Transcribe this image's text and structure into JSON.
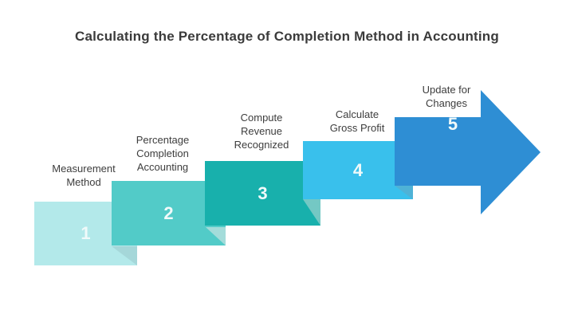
{
  "title": "Calculating the Percentage of Completion Method in Accounting",
  "steps": [
    {
      "number": "1",
      "label": "Measurement Method",
      "lines": [
        "Measurement",
        "Method"
      ]
    },
    {
      "number": "2",
      "label": "Percentage Completion Accounting",
      "lines": [
        "Percentage",
        "Completion",
        "Accounting"
      ]
    },
    {
      "number": "3",
      "label": "Compute Revenue Recognized",
      "lines": [
        "Compute",
        "Revenue",
        "Recognized"
      ]
    },
    {
      "number": "4",
      "label": "Calculate Gross Profit",
      "lines": [
        "Calculate",
        "Gross Profit"
      ]
    },
    {
      "number": "5",
      "label": "Update for Changes",
      "lines": [
        "Update for",
        "Changes"
      ]
    }
  ],
  "colors": {
    "step1": "#b3e9ea",
    "step1-fold": "#a5d7d9",
    "step2": "#52cbc8",
    "step2-fold": "#a3dcda",
    "step3": "#18b0ac",
    "step3-fold": "#74c8c4",
    "step4": "#39c0ec",
    "step4-fold": "#4fb2d6",
    "step5": "#2e8ed4",
    "title-text": "#3b3b3b",
    "label-text": "#3d3d3d",
    "number-text": "#f0fafa"
  }
}
